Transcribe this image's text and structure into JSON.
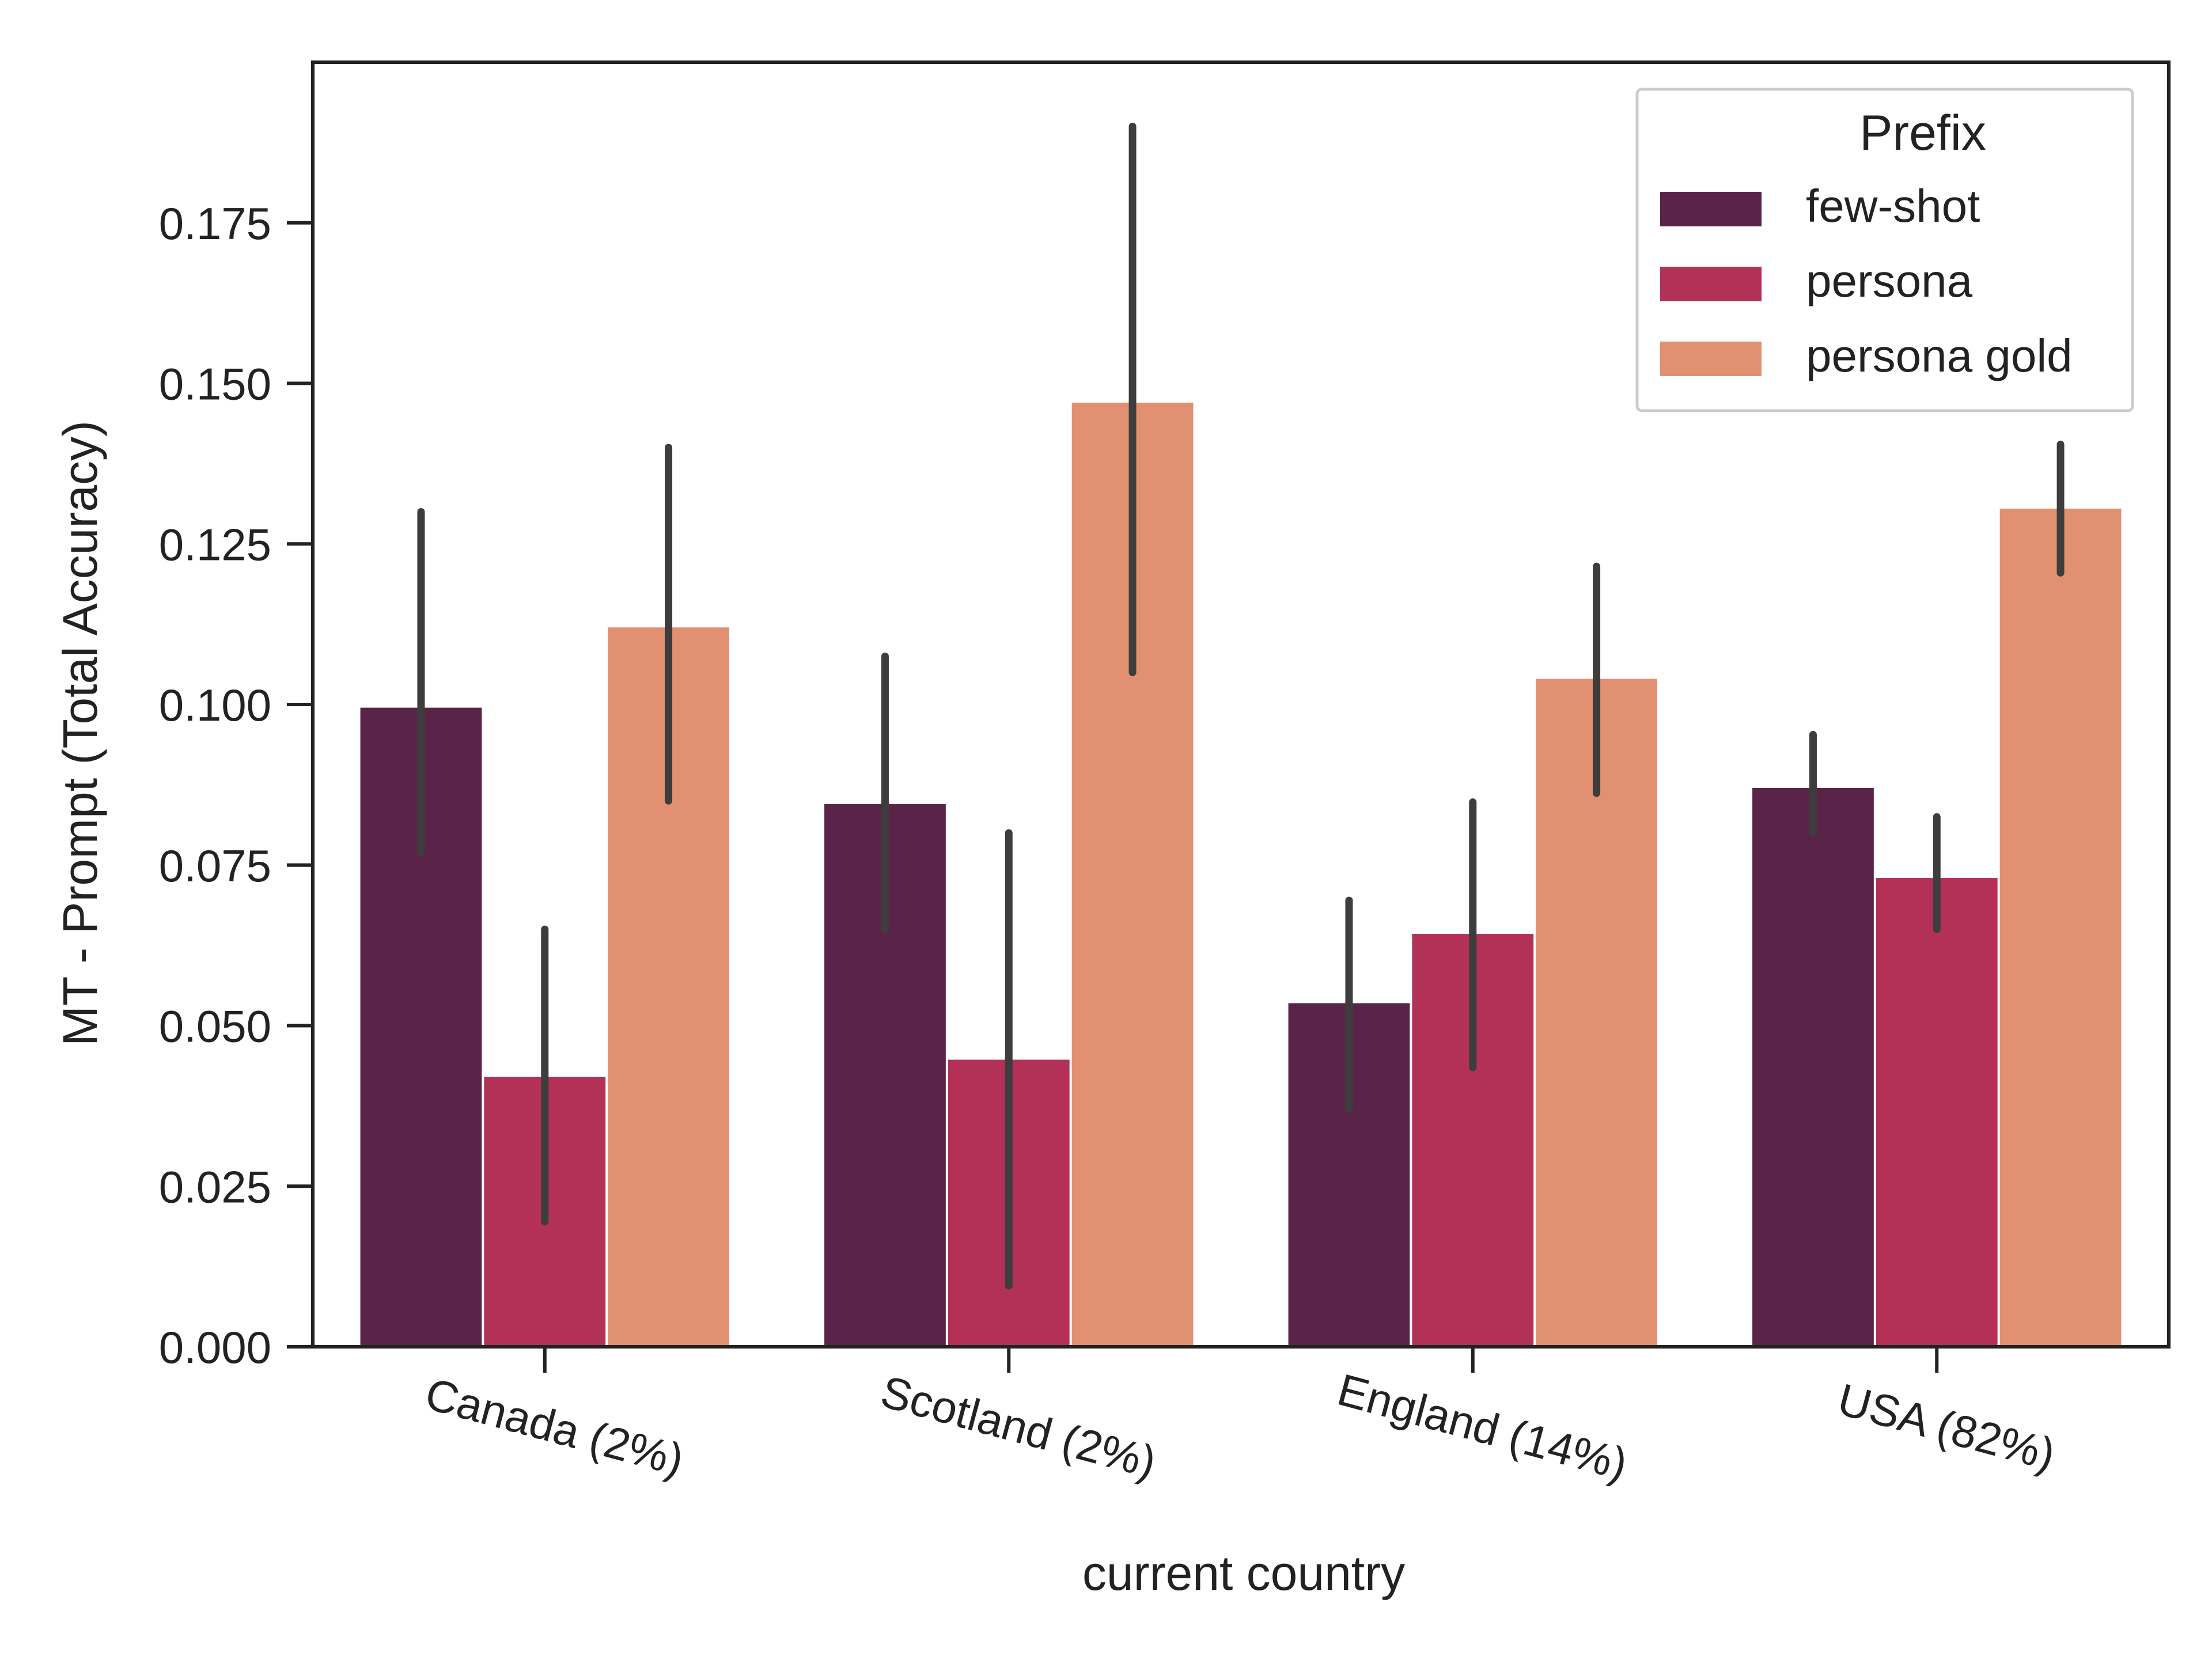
{
  "chart_data": {
    "type": "bar",
    "title": "",
    "xlabel": "current country",
    "ylabel": "MT - Prompt (Total Accuracy)",
    "categories": [
      "Canada (2%)",
      "Scotland (2%)",
      "England (14%)",
      "USA (82%)"
    ],
    "ylim": [
      0,
      0.2
    ],
    "yticks": [
      0.0,
      0.025,
      0.05,
      0.075,
      0.1,
      0.125,
      0.15,
      0.175
    ],
    "ytick_labels": [
      "0.000",
      "0.025",
      "0.050",
      "0.075",
      "0.100",
      "0.125",
      "0.150",
      "0.175"
    ],
    "legend": {
      "title": "Prefix",
      "position": "top-right"
    },
    "grid": false,
    "series": [
      {
        "name": "few-shot",
        "color": "#5a2449",
        "values": [
          0.0995,
          0.0845,
          0.0535,
          0.087
        ],
        "error_low": [
          0.077,
          0.065,
          0.037,
          0.08
        ],
        "error_high": [
          0.13,
          0.1075,
          0.0695,
          0.0953
        ]
      },
      {
        "name": "persona",
        "color": "#b33057",
        "values": [
          0.042,
          0.0447,
          0.0643,
          0.073
        ],
        "error_low": [
          0.0195,
          0.0095,
          0.0435,
          0.065
        ],
        "error_high": [
          0.065,
          0.08,
          0.0848,
          0.0825
        ]
      },
      {
        "name": "persona gold",
        "color": "#e19072",
        "values": [
          0.112,
          0.147,
          0.104,
          0.1305
        ],
        "error_low": [
          0.085,
          0.105,
          0.0862,
          0.1205
        ],
        "error_high": [
          0.14,
          0.19,
          0.1215,
          0.1405
        ]
      }
    ],
    "error_bar_color": "#3d3d3d"
  }
}
